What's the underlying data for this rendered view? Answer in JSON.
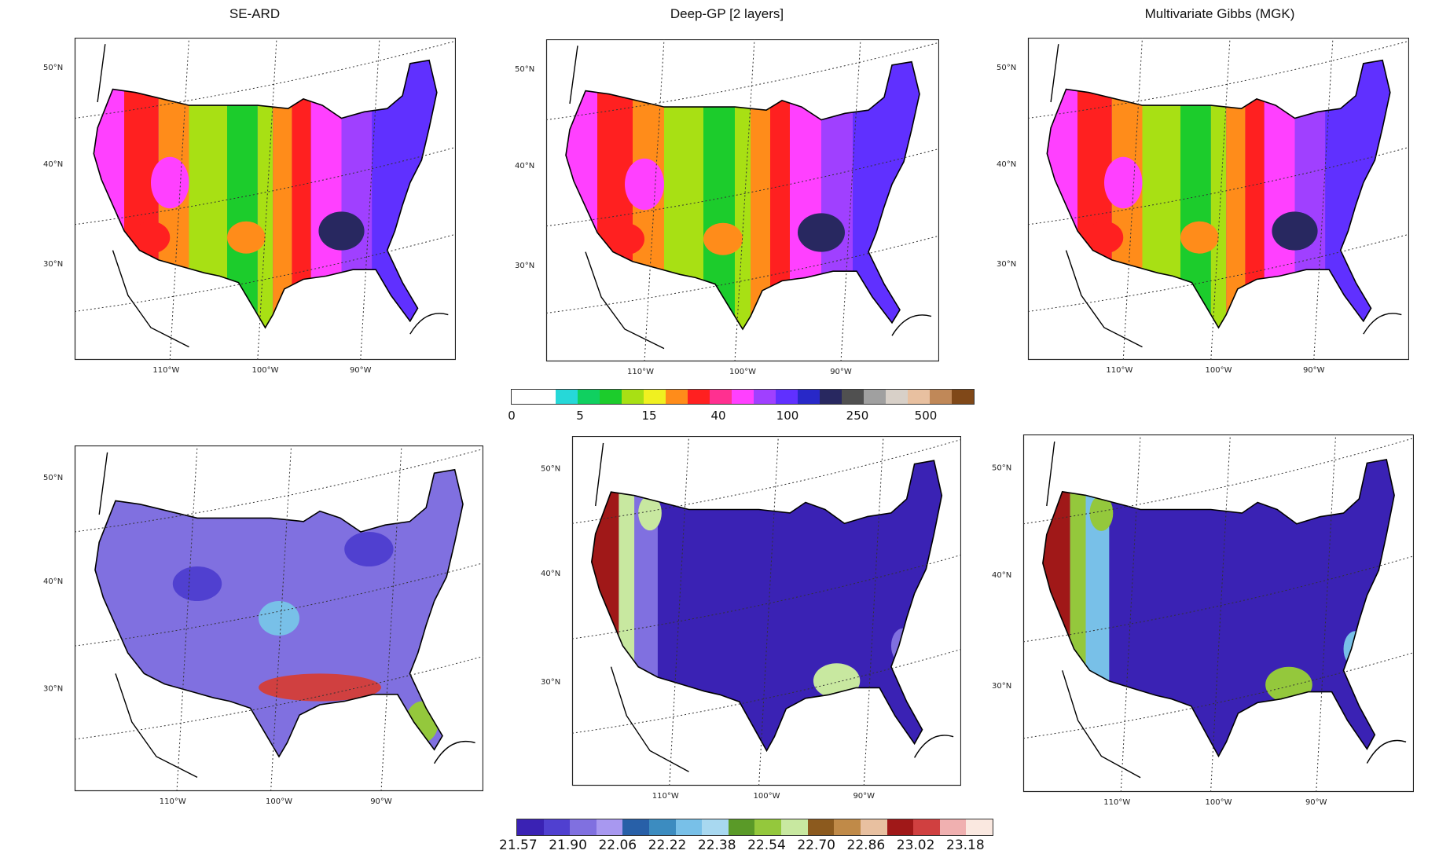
{
  "titles": {
    "left": "SE-ARD",
    "middle": "Deep-GP [2 layers]",
    "right": "Multivariate Gibbs (MGK)"
  },
  "lat_labels": [
    "50°N",
    "40°N",
    "30°N"
  ],
  "lon_labels": [
    "110°W",
    "100°W",
    "90°W"
  ],
  "colorbar_top": {
    "labels": [
      "0",
      "5",
      "15",
      "40",
      "100",
      "250",
      "500"
    ],
    "colors": [
      "#ffffff",
      "#ffffff",
      "#26d8d8",
      "#10d060",
      "#1ccc2c",
      "#a8e014",
      "#f0f020",
      "#ff8c1a",
      "#ff2020",
      "#ff3090",
      "#ff40ff",
      "#a040ff",
      "#6030ff",
      "#2828c8",
      "#282860",
      "#505050",
      "#a0a0a0",
      "#d8d0c8",
      "#e8c0a0",
      "#c08858",
      "#804818"
    ]
  },
  "colorbar_bottom": {
    "labels": [
      "21.57",
      "21.90",
      "22.06",
      "22.22",
      "22.38",
      "22.54",
      "22.70",
      "22.86",
      "23.02",
      "23.18"
    ],
    "colors": [
      "#3a22b4",
      "#5040d0",
      "#8070e0",
      "#a898f0",
      "#2860a8",
      "#3c8cc0",
      "#78c0e8",
      "#a8d8f0",
      "#5a9a28",
      "#94c83c",
      "#c8e8a0",
      "#8c5a1e",
      "#c08a48",
      "#e8c0a0",
      "#a01818",
      "#d04040",
      "#f0b0b0",
      "#fae8e0"
    ]
  },
  "maps": [
    {
      "name": "se-ard-precip",
      "palette": [
        "#ff40ff",
        "#a040ff",
        "#6030ff",
        "#3a2ae0",
        "#ff2020",
        "#ff8c1a",
        "#a8e014",
        "#1ccc2c"
      ]
    },
    {
      "name": "deep-gp-precip",
      "palette": [
        "#ff40ff",
        "#a040ff",
        "#6030ff",
        "#3a2ae0",
        "#ff2020",
        "#ff8c1a",
        "#a8e014",
        "#1ccc2c"
      ]
    },
    {
      "name": "mgk-precip",
      "palette": [
        "#ff40ff",
        "#a040ff",
        "#6030ff",
        "#3a2ae0",
        "#ff2020",
        "#ff8c1a",
        "#a8e014",
        "#1ccc2c"
      ]
    },
    {
      "name": "se-ard-variance",
      "palette": [
        "#5040d0",
        "#8070e0",
        "#78c0e8",
        "#94c83c",
        "#d04040"
      ]
    },
    {
      "name": "deep-gp-variance",
      "palette": [
        "#3a22b4",
        "#5040d0",
        "#8070e0",
        "#c8e8a0",
        "#a01818"
      ]
    },
    {
      "name": "mgk-variance",
      "palette": [
        "#3a22b4",
        "#5040d0",
        "#78c0e8",
        "#94c83c",
        "#a01818"
      ]
    }
  ]
}
